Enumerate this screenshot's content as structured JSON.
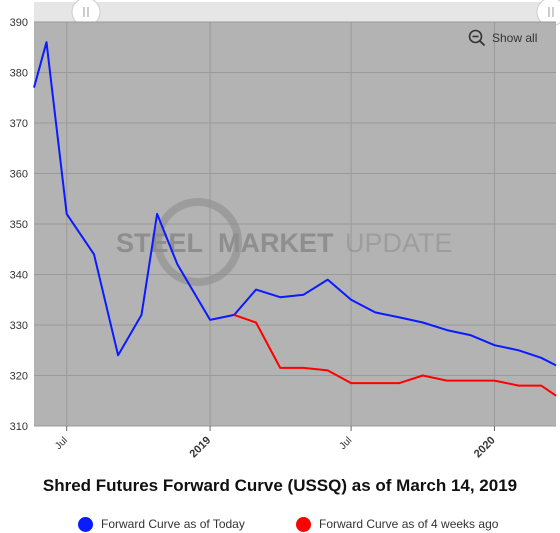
{
  "colors": {
    "plot_bg": "#b3b3b3",
    "grid": "#9a9a9a",
    "navigator_bg": "#e6e6e6",
    "today": "#0a1bff",
    "ago": "#ff0000"
  },
  "toolbar": {
    "show_all_label": "Show all",
    "zoom_icon": "zoom-out-icon"
  },
  "watermark": {
    "text_bold": "STEEL",
    "text_mid": "MARKET",
    "text_light": "UPDATE"
  },
  "chart_data": {
    "type": "line",
    "title": "Shred Futures Forward Curve (USSQ) as of March 14, 2019",
    "xlabel": "",
    "ylabel": "",
    "ylim": [
      310,
      390
    ],
    "y_ticks": [
      310,
      320,
      330,
      340,
      350,
      360,
      370,
      380,
      390
    ],
    "x_range": [
      "2018-05-20",
      "2020-03-20"
    ],
    "x_ticks": [
      {
        "date": "2018-07-01",
        "label": "Jul",
        "major": false
      },
      {
        "date": "2019-01-01",
        "label": "2019",
        "major": true
      },
      {
        "date": "2019-07-01",
        "label": "Jul",
        "major": false
      },
      {
        "date": "2020-01-01",
        "label": "2020",
        "major": true
      }
    ],
    "grid": true,
    "legend_position": "bottom",
    "series": [
      {
        "name": "Forward Curve as of Today",
        "color": "#0a1bff",
        "points": [
          [
            "2018-05-20",
            377
          ],
          [
            "2018-06-05",
            386
          ],
          [
            "2018-07-01",
            352
          ],
          [
            "2018-08-05",
            344
          ],
          [
            "2018-09-05",
            324
          ],
          [
            "2018-10-05",
            332
          ],
          [
            "2018-10-25",
            352
          ],
          [
            "2018-11-20",
            342
          ],
          [
            "2019-01-01",
            331
          ],
          [
            "2019-02-01",
            332
          ],
          [
            "2019-03-01",
            337
          ],
          [
            "2019-04-01",
            335.5
          ],
          [
            "2019-05-01",
            336
          ],
          [
            "2019-06-01",
            339
          ],
          [
            "2019-07-01",
            335
          ],
          [
            "2019-08-01",
            332.5
          ],
          [
            "2019-09-01",
            331.5
          ],
          [
            "2019-10-01",
            330.5
          ],
          [
            "2019-11-01",
            329
          ],
          [
            "2019-12-01",
            328
          ],
          [
            "2020-01-01",
            326
          ],
          [
            "2020-02-01",
            325
          ],
          [
            "2020-03-01",
            323.5
          ],
          [
            "2020-03-20",
            322
          ]
        ]
      },
      {
        "name": "Forward Curve as of 4 weeks ago",
        "color": "#ff0000",
        "points": [
          [
            "2019-02-01",
            332
          ],
          [
            "2019-03-01",
            330.5
          ],
          [
            "2019-04-01",
            321.5
          ],
          [
            "2019-05-01",
            321.5
          ],
          [
            "2019-06-01",
            321
          ],
          [
            "2019-07-01",
            318.5
          ],
          [
            "2019-08-01",
            318.5
          ],
          [
            "2019-09-01",
            318.5
          ],
          [
            "2019-10-01",
            320
          ],
          [
            "2019-11-01",
            319
          ],
          [
            "2019-12-01",
            319
          ],
          [
            "2020-01-01",
            319
          ],
          [
            "2020-02-01",
            318
          ],
          [
            "2020-03-01",
            318
          ],
          [
            "2020-03-20",
            316
          ]
        ]
      }
    ]
  }
}
